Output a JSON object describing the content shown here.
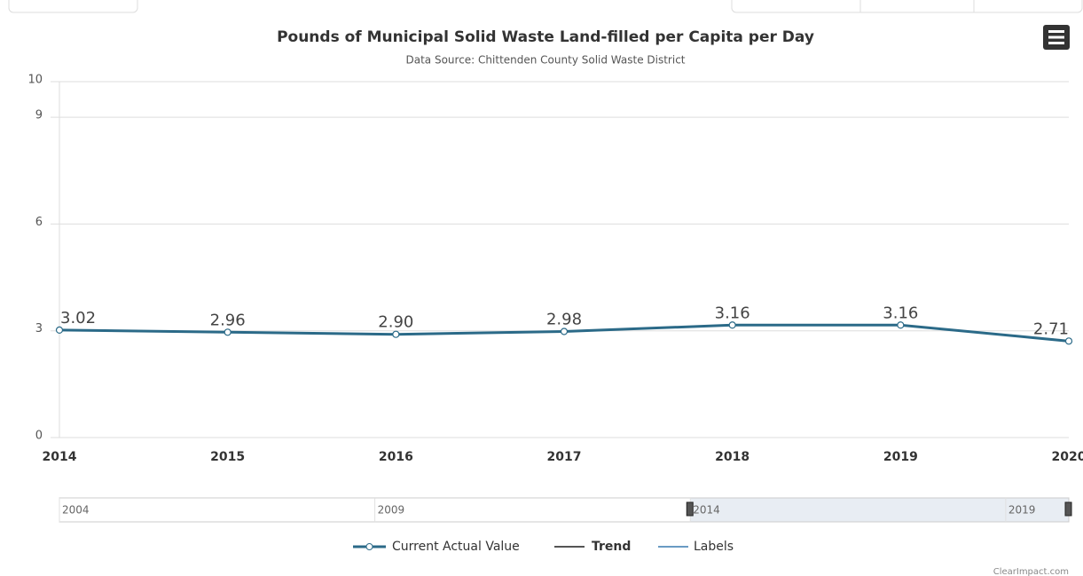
{
  "chart_data": {
    "type": "line",
    "title": "Pounds of Municipal Solid Waste Land-filled per Capita per Day",
    "subtitle": "Data Source: Chittenden County Solid Waste District",
    "categories": [
      "2014",
      "2015",
      "2016",
      "2017",
      "2018",
      "2019",
      "2020"
    ],
    "series": [
      {
        "name": "Current Actual Value",
        "color": "#2b6a88",
        "values": [
          3.02,
          2.96,
          2.9,
          2.98,
          3.16,
          3.16,
          2.71
        ],
        "value_labels": [
          "3.02",
          "2.96",
          "2.90",
          "2.98",
          "3.16",
          "3.16",
          "2.71"
        ]
      }
    ],
    "legend_extra": [
      {
        "name": "Trend",
        "color": "#555555"
      },
      {
        "name": "Labels",
        "color": "#6a9bc3"
      }
    ],
    "ylim": [
      0,
      10
    ],
    "yticks": [
      0,
      3,
      6,
      9,
      10
    ],
    "grid": true,
    "navigator": {
      "xlim": [
        2004,
        2020
      ],
      "xticks": [
        2004,
        2009,
        2014,
        2019
      ],
      "range": [
        2014,
        2020
      ]
    },
    "credit": "ClearImpact.com"
  }
}
